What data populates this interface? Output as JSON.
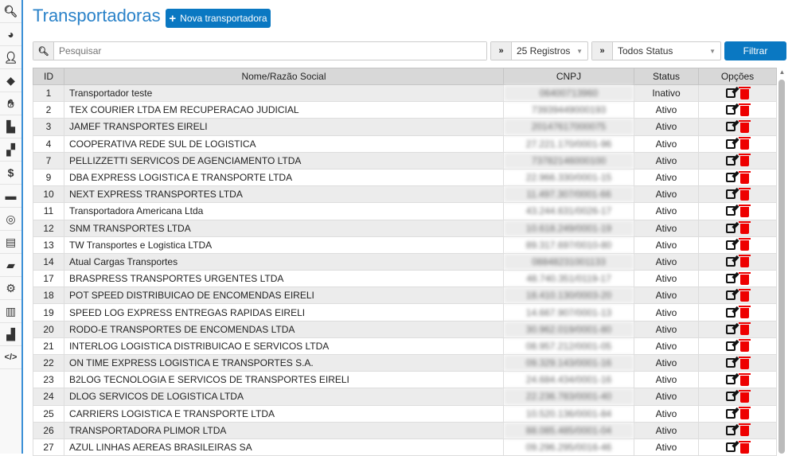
{
  "sidebar": {
    "items": [
      {
        "icon": "search-icon"
      },
      {
        "icon": "chart-pie-icon"
      },
      {
        "icon": "users-icon"
      },
      {
        "icon": "tags-icon"
      },
      {
        "icon": "handshake-icon"
      },
      {
        "icon": "industry-icon"
      },
      {
        "icon": "boxes-icon"
      },
      {
        "icon": "money-check-icon"
      },
      {
        "icon": "wallet-icon"
      },
      {
        "icon": "headset-icon"
      },
      {
        "icon": "file-icon"
      },
      {
        "icon": "folder-open-icon"
      },
      {
        "icon": "gear-icon"
      },
      {
        "icon": "store-icon"
      },
      {
        "icon": "dolly-icon"
      },
      {
        "icon": "code-icon"
      }
    ]
  },
  "header": {
    "title": "Transportadoras",
    "new_button": "Nova transportadora"
  },
  "filters": {
    "search_placeholder": "Pesquisar",
    "search_value": "",
    "records": "25 Registros",
    "status": "Todos Status",
    "filter_button": "Filtrar"
  },
  "colors": {
    "accent": "#0a78c2",
    "title": "#2a82c9",
    "delete": "#e00000"
  },
  "table": {
    "headers": [
      "ID",
      "Nome/Razão Social",
      "CNPJ",
      "Status",
      "Opções"
    ],
    "rows": [
      [
        "1",
        "Transportador teste",
        "06400713960",
        "Inativo"
      ],
      [
        "2",
        "TEX COURIER LTDA EM RECUPERACAO JUDICIAL",
        "73939449000193",
        "Ativo"
      ],
      [
        "3",
        "JAMEF TRANSPORTES EIRELI",
        "20147617000075",
        "Ativo"
      ],
      [
        "4",
        "COOPERATIVA REDE SUL DE LOGISTICA",
        "27.221.170/0001-96",
        "Ativo"
      ],
      [
        "7",
        "PELLIZZETTI SERVICOS DE AGENCIAMENTO LTDA",
        "73782146000100",
        "Ativo"
      ],
      [
        "9",
        "DBA EXPRESS LOGISTICA E TRANSPORTE LTDA",
        "22.966.330/0001-15",
        "Ativo"
      ],
      [
        "10",
        "NEXT EXPRESS TRANSPORTES LTDA",
        "11.497.307/0001-66",
        "Ativo"
      ],
      [
        "11",
        "Transportadora Americana Ltda",
        "43.244.631/0026-17",
        "Ativo"
      ],
      [
        "12",
        "SNM TRANSPORTES LTDA",
        "10.618.249/0001-19",
        "Ativo"
      ],
      [
        "13",
        "TW Transportes e Logistica LTDA",
        "89.317.697/0010-80",
        "Ativo"
      ],
      [
        "14",
        "Atual Cargas Transportes",
        "08848231001133",
        "Ativo"
      ],
      [
        "17",
        "BRASPRESS TRANSPORTES URGENTES LTDA",
        "48.740.351/0119-17",
        "Ativo"
      ],
      [
        "18",
        "POT SPEED DISTRIBUICAO DE ENCOMENDAS EIRELI",
        "18.410.130/0003-20",
        "Ativo"
      ],
      [
        "19",
        "SPEED LOG EXPRESS ENTREGAS RAPIDAS EIRELI",
        "14.667.907/0001-13",
        "Ativo"
      ],
      [
        "20",
        "RODO-E TRANSPORTES DE ENCOMENDAS LTDA",
        "30.962.019/0001-80",
        "Ativo"
      ],
      [
        "21",
        "INTERLOG LOGISTICA DISTRIBUICAO E SERVICOS LTDA",
        "08.957.212/0001-05",
        "Ativo"
      ],
      [
        "22",
        "ON TIME EXPRESS LOGISTICA E TRANSPORTES S.A.",
        "09.329.143/0001-16",
        "Ativo"
      ],
      [
        "23",
        "B2LOG TECNOLOGIA E SERVICOS DE TRANSPORTES EIRELI",
        "24.684.434/0001-16",
        "Ativo"
      ],
      [
        "24",
        "DLOG SERVICOS DE LOGISTICA LTDA",
        "22.236.783/0001-40",
        "Ativo"
      ],
      [
        "25",
        "CARRIERS LOGISTICA E TRANSPORTE LTDA",
        "10.520.136/0001-84",
        "Ativo"
      ],
      [
        "26",
        "TRANSPORTADORA PLIMOR LTDA",
        "88.085.485/0001-04",
        "Ativo"
      ],
      [
        "27",
        "AZUL LINHAS AEREAS BRASILEIRAS SA",
        "09.296.295/0016-46",
        "Ativo"
      ]
    ]
  }
}
